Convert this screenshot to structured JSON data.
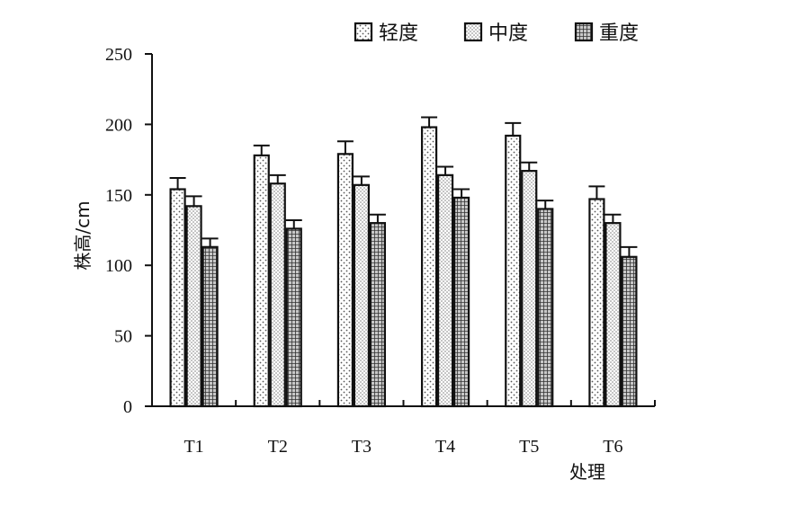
{
  "chart_data": {
    "type": "bar",
    "title": "",
    "xlabel": "处理",
    "ylabel": "株高/cm",
    "categories": [
      "T1",
      "T2",
      "T3",
      "T4",
      "T5",
      "T6"
    ],
    "ylim": [
      0,
      250
    ],
    "yticks": [
      0,
      50,
      100,
      150,
      200,
      250
    ],
    "legend_position": "top-right",
    "grid": false,
    "error_bars": true,
    "series": [
      {
        "name": "轻度",
        "values": [
          154,
          178,
          179,
          198,
          192,
          147
        ],
        "errors": [
          8,
          7,
          9,
          7,
          9,
          9
        ],
        "pattern": "light-dots"
      },
      {
        "name": "中度",
        "values": [
          142,
          158,
          157,
          164,
          167,
          130
        ],
        "errors": [
          7,
          6,
          6,
          6,
          6,
          6
        ],
        "pattern": "fine-dots"
      },
      {
        "name": "重度",
        "values": [
          113,
          126,
          130,
          148,
          140,
          106
        ],
        "errors": [
          6,
          6,
          6,
          6,
          6,
          7
        ],
        "pattern": "grid"
      }
    ]
  }
}
